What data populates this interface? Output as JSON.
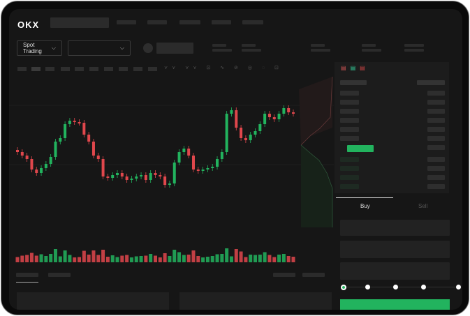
{
  "header": {
    "logo": "OKX"
  },
  "market_selector": {
    "label": "Spot Trading"
  },
  "trade_panel": {
    "tabs": [
      "Buy",
      "Sell"
    ],
    "active_tab": "Buy",
    "leverage_steps": 5,
    "selected_step": 0
  },
  "colors": {
    "up": "#22b35e",
    "down": "#e0474c",
    "background": "#161616",
    "accent": "#22b35e"
  },
  "icons": [
    "chevron-down-icon",
    "orderbook-both-icon",
    "orderbook-buy-icon",
    "orderbook-sell-icon"
  ],
  "chart_data": {
    "type": "candlestick",
    "closes": [
      95,
      90,
      85,
      70,
      65,
      72,
      78,
      88,
      110,
      115,
      135,
      140,
      138,
      137,
      120,
      110,
      90,
      85,
      60,
      58,
      62,
      65,
      60,
      55,
      57,
      60,
      62,
      55,
      65,
      62,
      60,
      48,
      50,
      80,
      95,
      100,
      90,
      70,
      68,
      70,
      72,
      74,
      85,
      95,
      150,
      155,
      130,
      115,
      112,
      120,
      125,
      135,
      150,
      145,
      142,
      150,
      158,
      152,
      150
    ]
  }
}
